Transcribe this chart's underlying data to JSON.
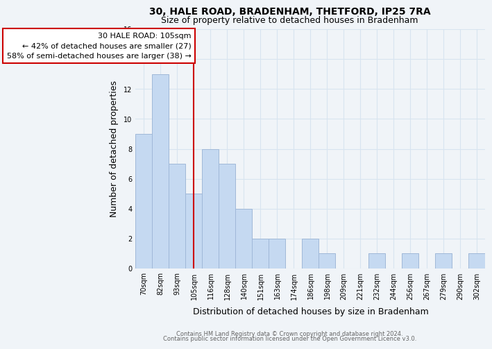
{
  "title": "30, HALE ROAD, BRADENHAM, THETFORD, IP25 7RA",
  "subtitle": "Size of property relative to detached houses in Bradenham",
  "xlabel": "Distribution of detached houses by size in Bradenham",
  "ylabel": "Number of detached properties",
  "bin_labels": [
    "70sqm",
    "82sqm",
    "93sqm",
    "105sqm",
    "116sqm",
    "128sqm",
    "140sqm",
    "151sqm",
    "163sqm",
    "174sqm",
    "186sqm",
    "198sqm",
    "209sqm",
    "221sqm",
    "232sqm",
    "244sqm",
    "256sqm",
    "267sqm",
    "279sqm",
    "290sqm",
    "302sqm"
  ],
  "bar_heights": [
    9,
    13,
    7,
    5,
    8,
    7,
    4,
    2,
    2,
    0,
    2,
    1,
    0,
    0,
    1,
    0,
    1,
    0,
    1,
    0,
    1
  ],
  "bar_color": "#c5d9f1",
  "bar_edge_color": "#a0b8d8",
  "vline_x_index": 3,
  "vline_color": "#cc0000",
  "annotation_line1": "30 HALE ROAD: 105sqm",
  "annotation_line2": "← 42% of detached houses are smaller (27)",
  "annotation_line3": "58% of semi-detached houses are larger (38) →",
  "annotation_box_color": "#ffffff",
  "annotation_box_edge_color": "#cc0000",
  "ylim": [
    0,
    16
  ],
  "yticks": [
    0,
    2,
    4,
    6,
    8,
    10,
    12,
    14,
    16
  ],
  "grid_color": "#d8e4f0",
  "footer_line1": "Contains HM Land Registry data © Crown copyright and database right 2024.",
  "footer_line2": "Contains public sector information licensed under the Open Government Licence v3.0.",
  "background_color": "#f0f4f8",
  "title_fontsize": 10,
  "subtitle_fontsize": 9,
  "axis_label_fontsize": 9,
  "tick_fontsize": 7,
  "annotation_fontsize": 8,
  "footer_fontsize": 6
}
